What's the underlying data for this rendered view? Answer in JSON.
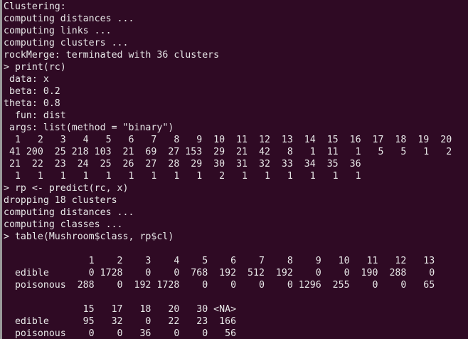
{
  "terminal": {
    "colors": {
      "background": "#2f0a24",
      "foreground": "#e8e8e8"
    },
    "lines": [
      "Clustering:",
      "computing distances ...",
      "computing links ...",
      "computing clusters ...",
      "rockMerge: terminated with 36 clusters",
      "> print(rc)",
      " data: x",
      " beta: 0.2",
      "theta: 0.8",
      "  fun: dist",
      " args: list(method = \"binary\")",
      "  1   2   3   4   5   6   7   8   9  10  11  12  13  14  15  16  17  18  19  20",
      " 41 200  25 218 103  21  69  27 153  29  21  42   8   1  11   1   5   5   1   2",
      " 21  22  23  24  25  26  27  28  29  30  31  32  33  34  35  36",
      "  1   1   1   1   1   1   1   1   1   2   1   1   1   1   1   1",
      "> rp <- predict(rc, x)",
      "dropping 18 clusters",
      "computing distances ...",
      "computing classes ...",
      "> table(Mushroom$class, rp$cl)",
      "",
      "               1    2    3    4    5    6    7    8    9   10   11   12   13",
      "  edible       0 1728    0    0  768  192  512  192    0    0  190  288    0",
      "  poisonous  288    0  192 1728    0    0    0    0 1296  255    0    0   65",
      "",
      "              15   17   18   20   30 <NA>",
      "  edible      95   32    0   22   23  166",
      "  poisonous    0    0   36    0    0   56"
    ]
  }
}
